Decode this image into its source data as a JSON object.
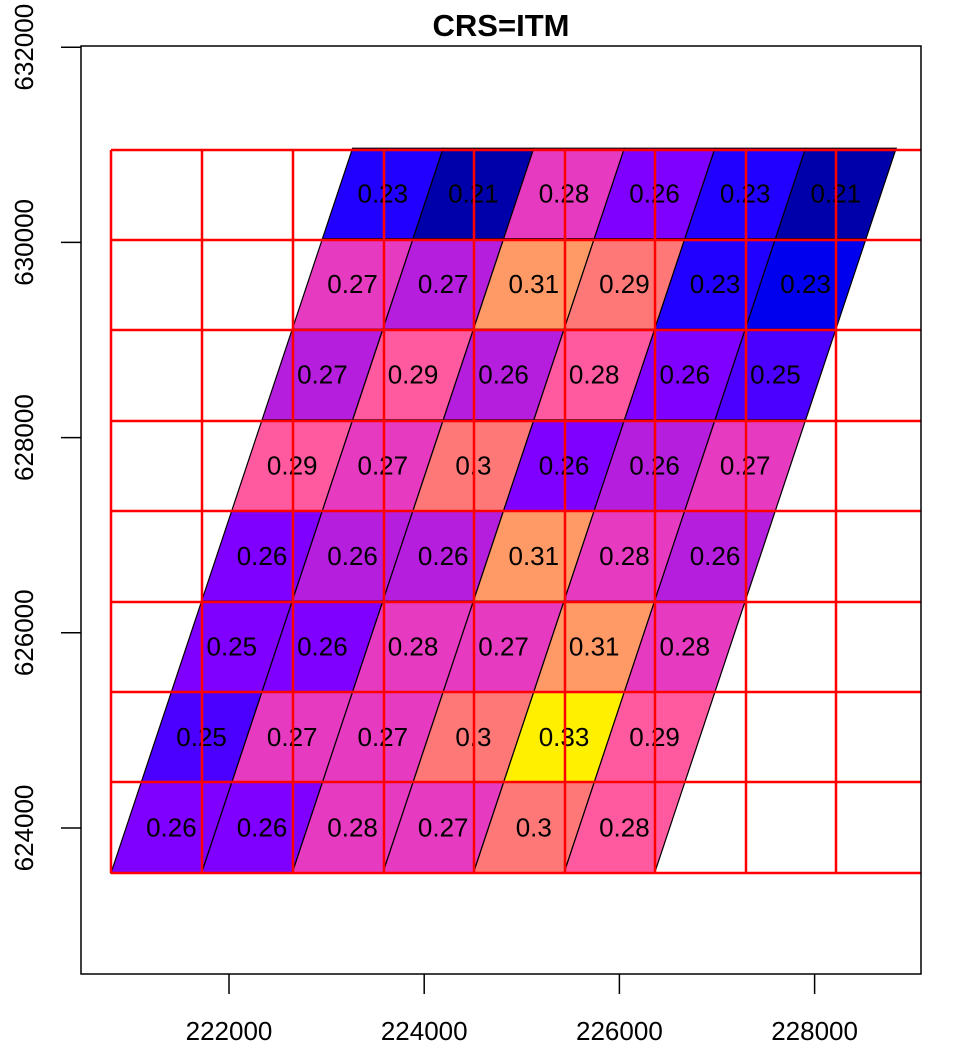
{
  "chart_data": {
    "type": "heatmap",
    "title": "CRS=ITM",
    "xlabel": "",
    "ylabel": "",
    "xlim": [
      220500,
      229100
    ],
    "ylim": [
      622500,
      632000
    ],
    "x_ticks": [
      222000,
      224000,
      226000,
      228000
    ],
    "x_tick_labels": [
      "222000",
      "224000",
      "226000",
      "228000"
    ],
    "y_ticks": [
      624000,
      626000,
      628000,
      630000,
      632000
    ],
    "y_tick_labels": [
      "624000",
      "626000",
      "628000",
      "630000",
      "632000"
    ],
    "grid": {
      "color": "#FF0000",
      "description": "red rectangular grid (9 columns x 8 rows) overlaid on skewed raster cells",
      "x_breaks": [
        220800,
        221733,
        222667,
        223600,
        224533,
        225467,
        226400,
        227333,
        228267,
        229200
      ],
      "y_breaks": [
        623550,
        624483,
        625417,
        626350,
        627283,
        628217,
        629150,
        630083,
        631017
      ]
    },
    "raster_note": "Cells are parallelograms (skewed raster reprojected to ITM); each row shifted right by ~1/3 cell relative to the row below.",
    "rows": [
      {
        "row": 1,
        "position": "top",
        "values": [
          0.23,
          0.21,
          0.28,
          0.26,
          0.23,
          0.21
        ],
        "colors": [
          "#2200FF",
          "#0000AA",
          "#E63BC0",
          "#8000FF",
          "#2200FF",
          "#0000AA"
        ]
      },
      {
        "row": 2,
        "values": [
          0.27,
          0.27,
          0.31,
          0.29,
          0.23,
          0.23
        ],
        "colors": [
          "#E63BC0",
          "#B41EDC",
          "#FF9966",
          "#FF7878",
          "#2200FF",
          "#0000EE"
        ]
      },
      {
        "row": 3,
        "values": [
          0.27,
          0.29,
          0.26,
          0.28,
          0.26,
          0.25
        ],
        "colors": [
          "#B41EDC",
          "#FF5AA0",
          "#B41EDC",
          "#FF5AA0",
          "#8000FF",
          "#4B00FF"
        ]
      },
      {
        "row": 4,
        "values": [
          0.29,
          0.27,
          0.3,
          0.26,
          0.26,
          0.27
        ],
        "colors": [
          "#FF5AA0",
          "#E63BC0",
          "#FF7878",
          "#8000FF",
          "#B41EDC",
          "#E63BC0"
        ]
      },
      {
        "row": 5,
        "values": [
          0.26,
          0.26,
          0.26,
          0.31,
          0.28,
          0.26
        ],
        "colors": [
          "#8000FF",
          "#B41EDC",
          "#B41EDC",
          "#FF9966",
          "#E63BC0",
          "#B41EDC"
        ]
      },
      {
        "row": 6,
        "values": [
          0.25,
          0.26,
          0.28,
          0.27,
          0.31,
          0.28
        ],
        "colors": [
          "#8000FF",
          "#8000FF",
          "#E63BC0",
          "#E63BC0",
          "#FF9966",
          "#E63BC0"
        ]
      },
      {
        "row": 7,
        "values": [
          0.25,
          0.27,
          0.27,
          0.3,
          0.33,
          0.29
        ],
        "colors": [
          "#4B00FF",
          "#E63BC0",
          "#E63BC0",
          "#FF7878",
          "#FFF000",
          "#FF5AA0"
        ]
      },
      {
        "row": 8,
        "position": "bottom",
        "values": [
          0.26,
          0.26,
          0.28,
          0.27,
          0.3,
          0.28
        ],
        "colors": [
          "#8000FF",
          "#8000FF",
          "#E63BC0",
          "#E63BC0",
          "#FF7878",
          "#FF5AA0"
        ]
      }
    ],
    "value_range": [
      0.21,
      0.33
    ],
    "colormap": "dark blue (low) -> blue -> purple -> magenta -> pink -> salmon -> orange -> yellow (high)"
  }
}
